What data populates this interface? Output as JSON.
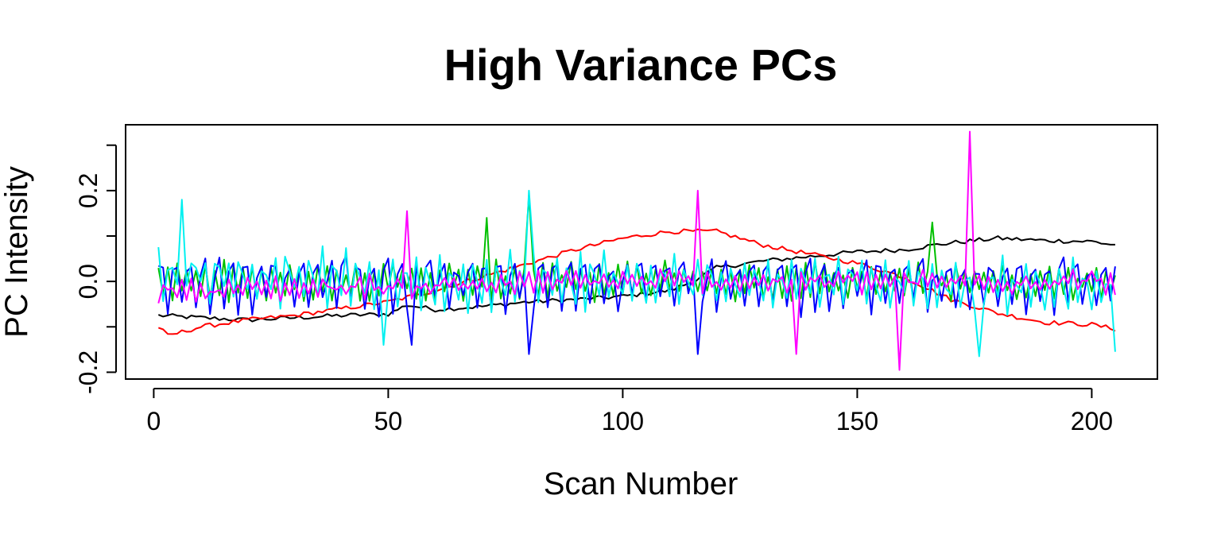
{
  "chart_data": {
    "type": "line",
    "title": "High Variance PCs",
    "xlabel": "Scan Number",
    "ylabel": "PC Intensity",
    "xlim": [
      -6,
      214
    ],
    "ylim": [
      -0.215,
      0.345
    ],
    "x_ticks": [
      0,
      50,
      100,
      150,
      200
    ],
    "x_tick_labels": [
      "0",
      "50",
      "100",
      "150",
      "200"
    ],
    "y_ticks": [
      -0.2,
      -0.1,
      0.0,
      0.1,
      0.2,
      0.3
    ],
    "y_tick_labels": [
      "-0.2",
      "",
      "0.0",
      "",
      "0.2",
      ""
    ],
    "grid": false,
    "legend": "none",
    "n_scans": 205,
    "series": [
      {
        "color": "#000000",
        "points": [
          [
            1,
            -0.075
          ],
          [
            10,
            -0.08
          ],
          [
            20,
            -0.085
          ],
          [
            30,
            -0.08
          ],
          [
            40,
            -0.075
          ],
          [
            50,
            -0.072
          ],
          [
            54,
            -0.052
          ],
          [
            60,
            -0.062
          ],
          [
            70,
            -0.055
          ],
          [
            80,
            -0.045
          ],
          [
            90,
            -0.04
          ],
          [
            100,
            -0.033
          ],
          [
            110,
            -0.02
          ],
          [
            115,
            0.0
          ],
          [
            120,
            0.03
          ],
          [
            130,
            0.045
          ],
          [
            140,
            0.055
          ],
          [
            150,
            0.065
          ],
          [
            160,
            0.07
          ],
          [
            170,
            0.085
          ],
          [
            180,
            0.095
          ],
          [
            190,
            0.09
          ],
          [
            200,
            0.088
          ],
          [
            205,
            0.08
          ]
        ]
      },
      {
        "color": "#ff0000",
        "points": [
          [
            1,
            -0.1
          ],
          [
            3,
            -0.12
          ],
          [
            10,
            -0.1
          ],
          [
            20,
            -0.085
          ],
          [
            30,
            -0.075
          ],
          [
            40,
            -0.06
          ],
          [
            50,
            -0.045
          ],
          [
            60,
            -0.02
          ],
          [
            70,
            0.01
          ],
          [
            80,
            0.04
          ],
          [
            90,
            0.07
          ],
          [
            100,
            0.095
          ],
          [
            110,
            0.11
          ],
          [
            120,
            0.11
          ],
          [
            130,
            0.08
          ],
          [
            140,
            0.06
          ],
          [
            150,
            0.04
          ],
          [
            160,
            0.01
          ],
          [
            170,
            -0.04
          ],
          [
            180,
            -0.07
          ],
          [
            190,
            -0.09
          ],
          [
            200,
            -0.095
          ],
          [
            205,
            -0.105
          ]
        ]
      },
      {
        "color": "#00c000",
        "base": [
          [
            1,
            0.0
          ],
          [
            50,
            0.0
          ],
          [
            100,
            0.0
          ],
          [
            150,
            0.0
          ],
          [
            205,
            0.0
          ]
        ],
        "amp": 0.085,
        "period": 2,
        "spikes": [
          [
            80,
            0.19
          ],
          [
            166,
            0.13
          ],
          [
            71,
            0.14
          ]
        ]
      },
      {
        "color": "#0000ff",
        "base": [
          [
            1,
            0.0
          ],
          [
            50,
            0.0
          ],
          [
            100,
            0.0
          ],
          [
            150,
            0.0
          ],
          [
            205,
            0.0
          ]
        ],
        "amp": 0.07,
        "period": 3,
        "spikes": [
          [
            55,
            -0.14
          ],
          [
            80,
            -0.16
          ],
          [
            116,
            -0.16
          ]
        ]
      },
      {
        "color": "#00f0f0",
        "base": [
          [
            1,
            0.02
          ],
          [
            50,
            0.0
          ],
          [
            100,
            0.0
          ],
          [
            150,
            0.0
          ],
          [
            205,
            -0.02
          ]
        ],
        "amp": 0.065,
        "period": 2.5,
        "spikes": [
          [
            6,
            0.18
          ],
          [
            49,
            -0.14
          ],
          [
            80,
            0.2
          ],
          [
            176,
            -0.165
          ],
          [
            205,
            -0.155
          ]
        ]
      },
      {
        "color": "#ff00ff",
        "base": [
          [
            1,
            -0.02
          ],
          [
            50,
            -0.01
          ],
          [
            100,
            0.0
          ],
          [
            150,
            0.0
          ],
          [
            205,
            0.0
          ]
        ],
        "amp": 0.06,
        "period": 2,
        "spikes": [
          [
            54,
            0.155
          ],
          [
            116,
            0.2
          ],
          [
            159,
            -0.195
          ],
          [
            174,
            0.33
          ],
          [
            137,
            -0.16
          ]
        ]
      }
    ]
  }
}
